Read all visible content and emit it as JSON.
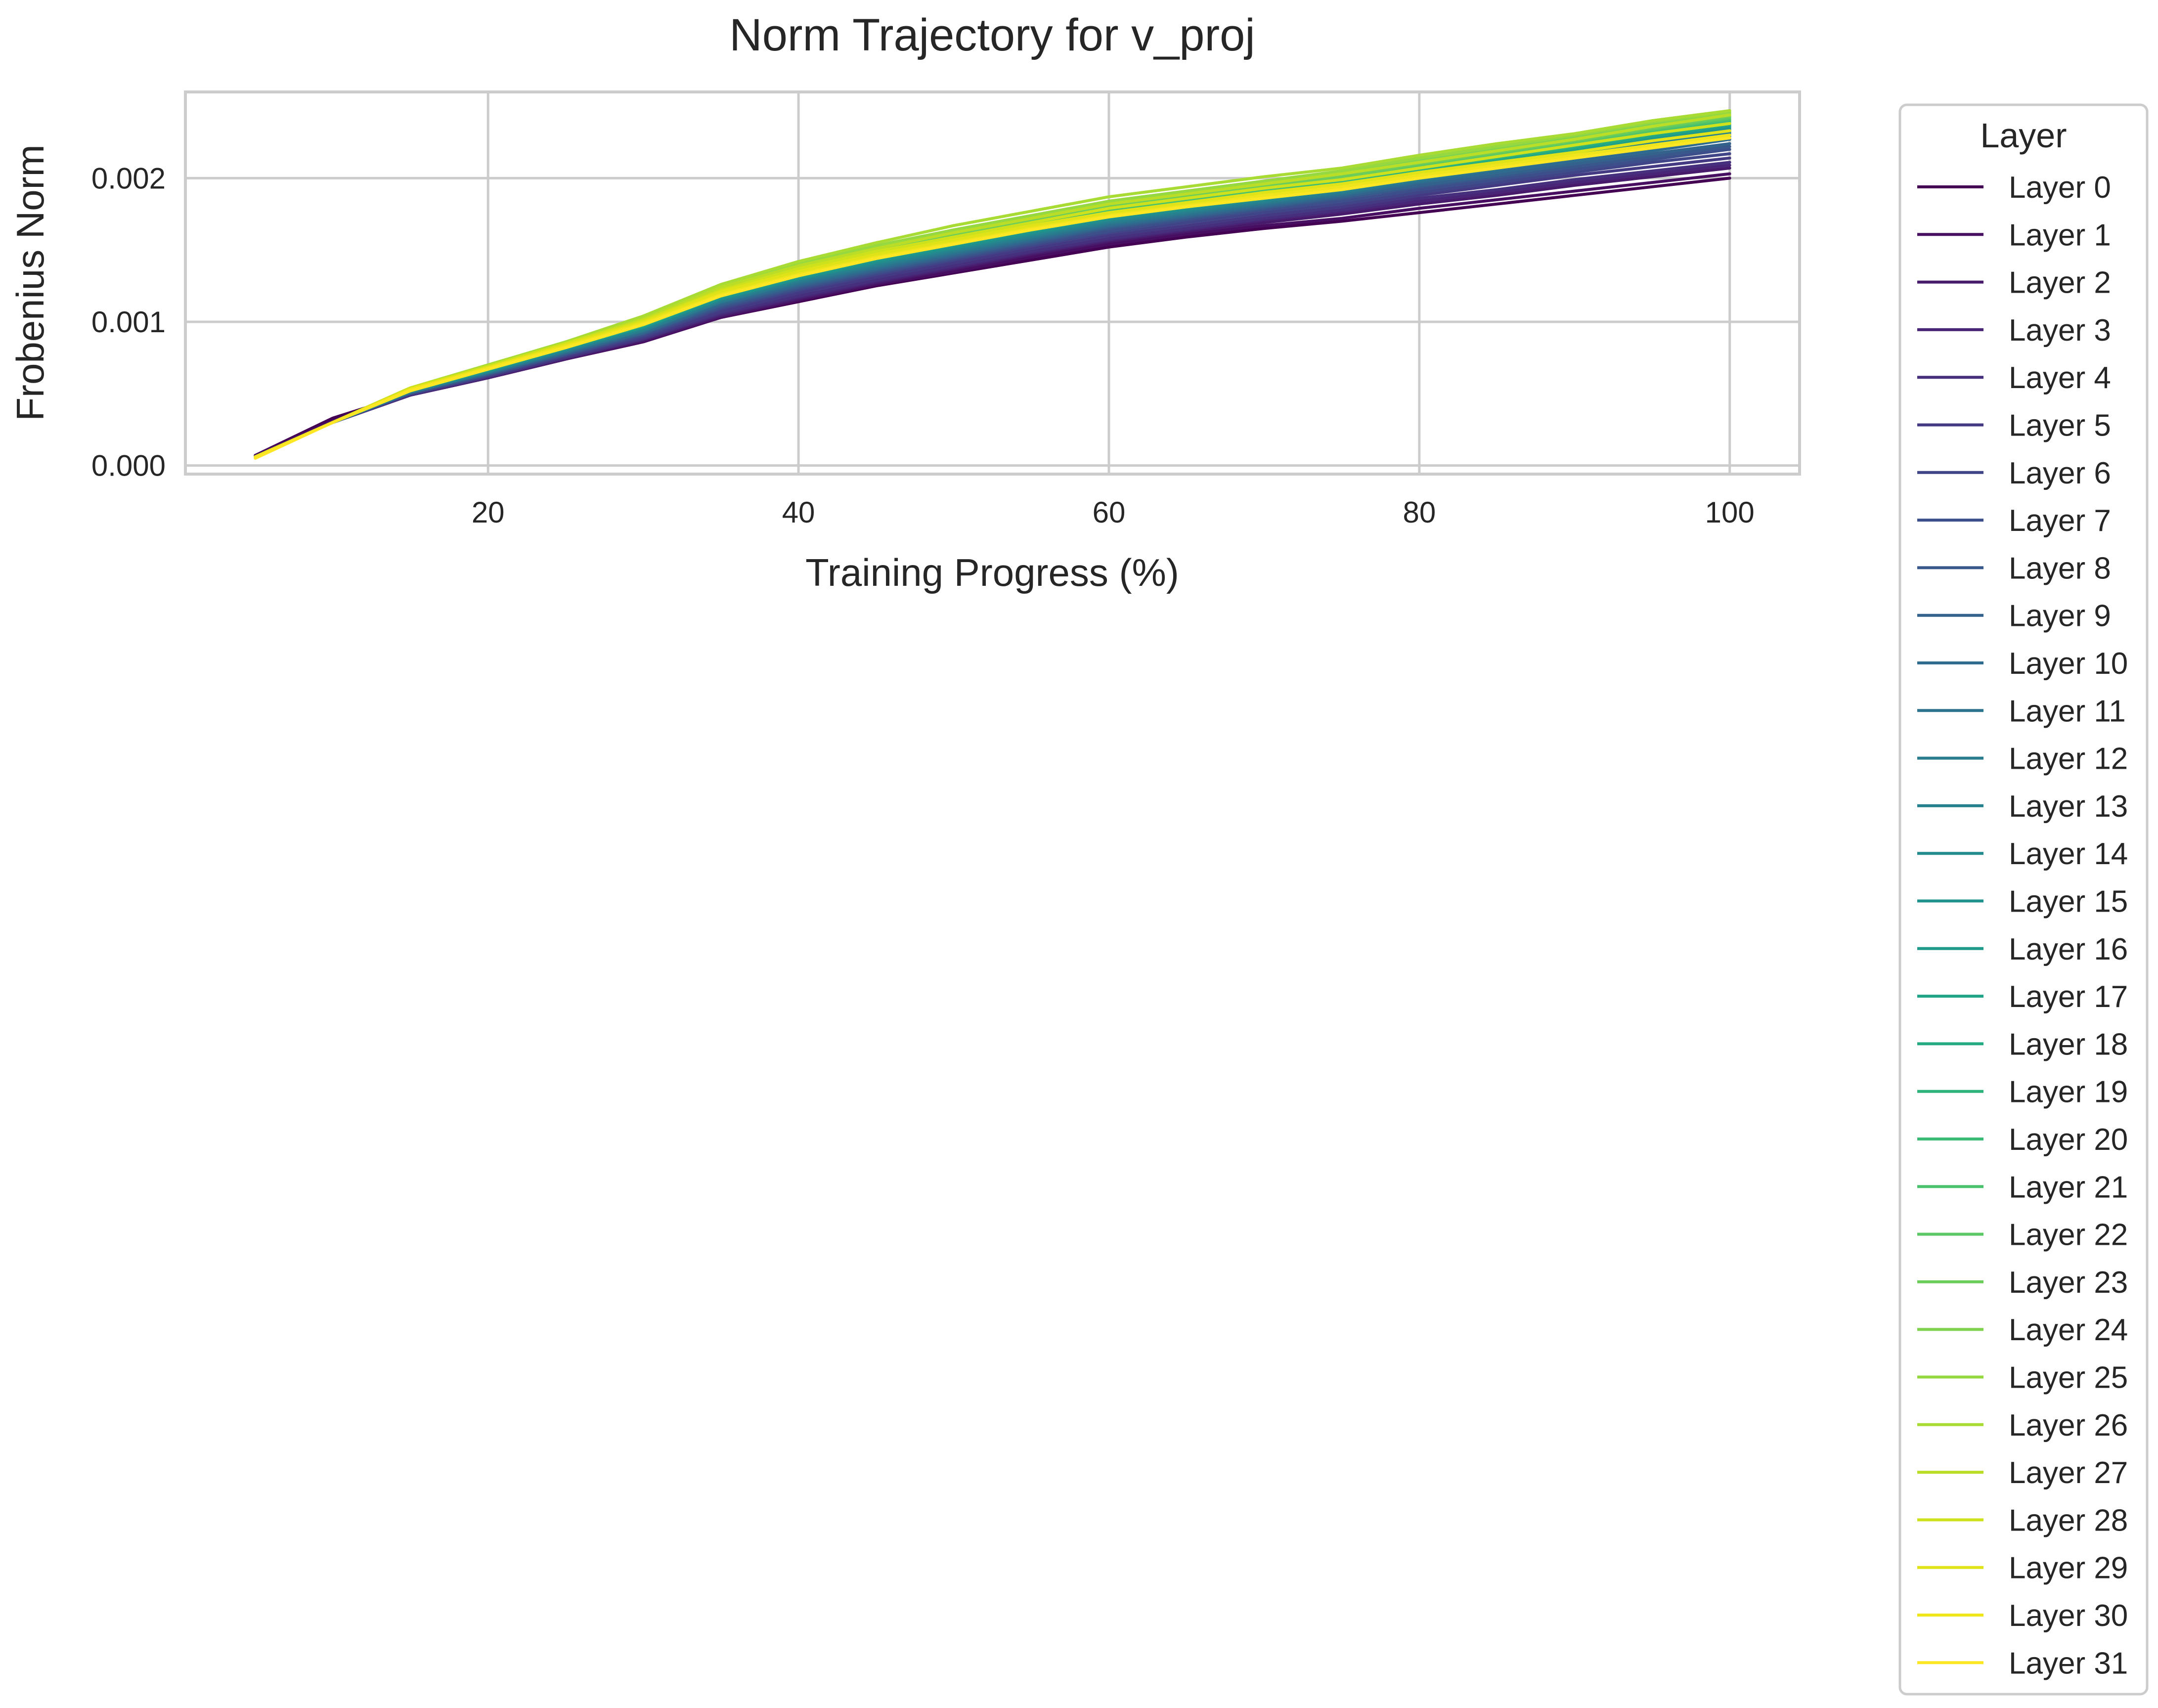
{
  "chart_data": {
    "type": "line",
    "title": "Norm Trajectory for v_proj",
    "xlabel": "Training Progress (%)",
    "ylabel": "Frobenius Norm",
    "xlim": [
      0.5,
      104.5
    ],
    "ylim": [
      -6e-05,
      0.0026
    ],
    "xticks": [
      20,
      40,
      60,
      80,
      100
    ],
    "xtick_labels": [
      "20",
      "40",
      "60",
      "80",
      "100"
    ],
    "yticks": [
      0,
      0.001,
      0.002
    ],
    "ytick_labels": [
      "0.000",
      "0.001",
      "0.002"
    ],
    "grid": true,
    "legend": {
      "title": "Layer",
      "placement": "outside-right"
    },
    "x": [
      5,
      10,
      15,
      20,
      25,
      30,
      35,
      40,
      45,
      50,
      55,
      60,
      65,
      70,
      75,
      80,
      85,
      90,
      95,
      100
    ],
    "series": [
      {
        "name": "Layer 0",
        "color": "#440154",
        "values": [
          7e-05,
          0.00033,
          0.0005,
          0.00062,
          0.00075,
          0.00087,
          0.00103,
          0.00114,
          0.00125,
          0.00134,
          0.00143,
          0.00152,
          0.00159,
          0.00165,
          0.0017,
          0.00176,
          0.00182,
          0.00188,
          0.00194,
          0.002
        ]
      },
      {
        "name": "Layer 1",
        "color": "#470e61",
        "values": [
          7e-05,
          0.00031,
          0.00049,
          0.00061,
          0.00074,
          0.00086,
          0.00103,
          0.00115,
          0.00126,
          0.00135,
          0.00145,
          0.00154,
          0.00161,
          0.00167,
          0.00172,
          0.00179,
          0.00185,
          0.00191,
          0.00197,
          0.00203
        ]
      },
      {
        "name": "Layer 2",
        "color": "#481a6c",
        "values": [
          6e-05,
          0.0003,
          0.00049,
          0.00061,
          0.00074,
          0.00087,
          0.00104,
          0.00116,
          0.00127,
          0.00137,
          0.00147,
          0.00156,
          0.00163,
          0.00169,
          0.00175,
          0.00182,
          0.00188,
          0.00195,
          0.00201,
          0.00207
        ]
      },
      {
        "name": "Layer 3",
        "color": "#482576",
        "values": [
          6e-05,
          0.0003,
          0.00049,
          0.00061,
          0.00075,
          0.00088,
          0.00105,
          0.00117,
          0.00128,
          0.00138,
          0.00148,
          0.00157,
          0.00164,
          0.00171,
          0.00177,
          0.00184,
          0.0019,
          0.00197,
          0.00203,
          0.00209
        ]
      },
      {
        "name": "Layer 4",
        "color": "#46307e",
        "values": [
          6e-05,
          0.0003,
          0.00049,
          0.00062,
          0.00075,
          0.00088,
          0.00106,
          0.00118,
          0.00129,
          0.00139,
          0.00149,
          0.00158,
          0.00165,
          0.00172,
          0.00178,
          0.00186,
          0.00192,
          0.00199,
          0.00205,
          0.00211
        ]
      },
      {
        "name": "Layer 5",
        "color": "#443a83",
        "values": [
          6e-05,
          0.0003,
          0.0005,
          0.00062,
          0.00076,
          0.00089,
          0.00107,
          0.0012,
          0.00131,
          0.00141,
          0.00151,
          0.0016,
          0.00167,
          0.00174,
          0.0018,
          0.00188,
          0.00195,
          0.00202,
          0.00208,
          0.00214
        ]
      },
      {
        "name": "Layer 6",
        "color": "#404588",
        "values": [
          6e-05,
          0.0003,
          0.0005,
          0.00063,
          0.00077,
          0.0009,
          0.00109,
          0.00122,
          0.00133,
          0.00143,
          0.00153,
          0.00162,
          0.00169,
          0.00176,
          0.00182,
          0.0019,
          0.00197,
          0.00204,
          0.00211,
          0.00217
        ]
      },
      {
        "name": "Layer 7",
        "color": "#3c4f8a",
        "values": [
          6e-05,
          0.0003,
          0.0005,
          0.00063,
          0.00077,
          0.00091,
          0.0011,
          0.00123,
          0.00134,
          0.00144,
          0.00154,
          0.00163,
          0.00171,
          0.00178,
          0.00184,
          0.00192,
          0.00199,
          0.00206,
          0.00213,
          0.0022
        ]
      },
      {
        "name": "Layer 8",
        "color": "#38588c",
        "values": [
          6e-05,
          0.0003,
          0.00051,
          0.00064,
          0.00078,
          0.00092,
          0.00111,
          0.00124,
          0.00135,
          0.00145,
          0.00155,
          0.00165,
          0.00172,
          0.00179,
          0.00186,
          0.00194,
          0.00201,
          0.00208,
          0.00215,
          0.00222
        ]
      },
      {
        "name": "Layer 9",
        "color": "#33628d",
        "values": [
          6e-05,
          0.0003,
          0.00051,
          0.00064,
          0.00078,
          0.00092,
          0.00112,
          0.00125,
          0.00136,
          0.00146,
          0.00156,
          0.00166,
          0.00173,
          0.0018,
          0.00187,
          0.00195,
          0.00202,
          0.0021,
          0.00217,
          0.00224
        ]
      },
      {
        "name": "Layer 10",
        "color": "#2f6b8e",
        "values": [
          6e-05,
          0.0003,
          0.00051,
          0.00064,
          0.00079,
          0.00093,
          0.00113,
          0.00126,
          0.00137,
          0.00147,
          0.00157,
          0.00167,
          0.00174,
          0.00181,
          0.00188,
          0.00197,
          0.00204,
          0.00212,
          0.00219,
          0.00227
        ]
      },
      {
        "name": "Layer 11",
        "color": "#2c738e",
        "values": [
          6e-05,
          0.0003,
          0.00051,
          0.00065,
          0.00079,
          0.00094,
          0.00114,
          0.00127,
          0.00138,
          0.00148,
          0.00158,
          0.00168,
          0.00175,
          0.00182,
          0.00189,
          0.00198,
          0.00206,
          0.00214,
          0.00221,
          0.00229
        ]
      },
      {
        "name": "Layer 12",
        "color": "#297b8e",
        "values": [
          6e-05,
          0.0003,
          0.00051,
          0.00065,
          0.0008,
          0.00094,
          0.00114,
          0.00128,
          0.00139,
          0.00149,
          0.00159,
          0.00169,
          0.00176,
          0.00183,
          0.0019,
          0.00199,
          0.00207,
          0.00215,
          0.00223,
          0.00231
        ]
      },
      {
        "name": "Layer 13",
        "color": "#26828e",
        "values": [
          6e-05,
          0.0003,
          0.00052,
          0.00065,
          0.0008,
          0.00095,
          0.00115,
          0.00129,
          0.0014,
          0.0015,
          0.0016,
          0.0017,
          0.00177,
          0.00184,
          0.00191,
          0.002,
          0.00208,
          0.00216,
          0.00224,
          0.00232
        ]
      },
      {
        "name": "Layer 14",
        "color": "#238a8d",
        "values": [
          6e-05,
          0.0003,
          0.00052,
          0.00066,
          0.00081,
          0.00096,
          0.00116,
          0.0013,
          0.00141,
          0.00151,
          0.00161,
          0.00171,
          0.00178,
          0.00185,
          0.00192,
          0.00201,
          0.00209,
          0.00217,
          0.00226,
          0.00234
        ]
      },
      {
        "name": "Layer 15",
        "color": "#1f928c",
        "values": [
          6e-05,
          0.0003,
          0.00052,
          0.00066,
          0.00081,
          0.00096,
          0.00116,
          0.0013,
          0.00142,
          0.00152,
          0.00162,
          0.00172,
          0.00179,
          0.00186,
          0.00193,
          0.00202,
          0.0021,
          0.00218,
          0.00227,
          0.00235
        ]
      },
      {
        "name": "Layer 16",
        "color": "#1f9a8a",
        "values": [
          6e-05,
          0.0003,
          0.00052,
          0.00066,
          0.00082,
          0.00097,
          0.00117,
          0.00131,
          0.00143,
          0.00153,
          0.00163,
          0.00173,
          0.0018,
          0.00187,
          0.00194,
          0.00203,
          0.00211,
          0.00219,
          0.00228,
          0.00236
        ]
      },
      {
        "name": "Layer 17",
        "color": "#20a386",
        "values": [
          6e-05,
          0.0003,
          0.00052,
          0.00067,
          0.00082,
          0.00097,
          0.00118,
          0.00132,
          0.00144,
          0.00154,
          0.00164,
          0.00174,
          0.00181,
          0.00188,
          0.00195,
          0.00204,
          0.00212,
          0.0022,
          0.00229,
          0.00237
        ]
      },
      {
        "name": "Layer 18",
        "color": "#24aa83",
        "values": [
          6e-05,
          0.0003,
          0.00052,
          0.00067,
          0.00082,
          0.00098,
          0.00118,
          0.00133,
          0.00145,
          0.00155,
          0.00165,
          0.00175,
          0.00182,
          0.00189,
          0.00196,
          0.00205,
          0.00213,
          0.00221,
          0.0023,
          0.00238
        ]
      },
      {
        "name": "Layer 19",
        "color": "#2eb37c",
        "values": [
          6e-05,
          0.0003,
          0.00053,
          0.00067,
          0.00083,
          0.00098,
          0.00119,
          0.00134,
          0.00146,
          0.00156,
          0.00166,
          0.00176,
          0.00183,
          0.0019,
          0.00197,
          0.00206,
          0.00214,
          0.00222,
          0.00231,
          0.00239
        ]
      },
      {
        "name": "Layer 20",
        "color": "#3bbb75",
        "values": [
          6e-05,
          0.0003,
          0.00053,
          0.00068,
          0.00083,
          0.00099,
          0.0012,
          0.00135,
          0.00147,
          0.00157,
          0.00167,
          0.00177,
          0.00184,
          0.00191,
          0.00198,
          0.00207,
          0.00215,
          0.00223,
          0.00232,
          0.0024
        ]
      },
      {
        "name": "Layer 21",
        "color": "#4ac16d",
        "values": [
          6e-05,
          0.0003,
          0.00053,
          0.00068,
          0.00084,
          0.001,
          0.00121,
          0.00136,
          0.00148,
          0.00158,
          0.00168,
          0.00178,
          0.00185,
          0.00192,
          0.00199,
          0.00208,
          0.00216,
          0.00224,
          0.00233,
          0.00241
        ]
      },
      {
        "name": "Layer 22",
        "color": "#5ac864",
        "values": [
          6e-05,
          0.0003,
          0.00053,
          0.00068,
          0.00084,
          0.001,
          0.00122,
          0.00137,
          0.00149,
          0.00159,
          0.00169,
          0.00179,
          0.00186,
          0.00193,
          0.002,
          0.00209,
          0.00217,
          0.00225,
          0.00234,
          0.00242
        ]
      },
      {
        "name": "Layer 23",
        "color": "#6ccd5a",
        "values": [
          6e-05,
          0.0003,
          0.00053,
          0.00069,
          0.00085,
          0.00101,
          0.00123,
          0.00138,
          0.0015,
          0.0016,
          0.0017,
          0.0018,
          0.00187,
          0.00194,
          0.00201,
          0.0021,
          0.00218,
          0.00226,
          0.00235,
          0.00243
        ]
      },
      {
        "name": "Layer 24",
        "color": "#7fd34e",
        "values": [
          6e-05,
          0.0003,
          0.00054,
          0.00069,
          0.00085,
          0.00102,
          0.00124,
          0.00139,
          0.00151,
          0.00162,
          0.00172,
          0.00182,
          0.00189,
          0.00196,
          0.00203,
          0.00212,
          0.0022,
          0.00228,
          0.00237,
          0.00245
        ]
      },
      {
        "name": "Layer 25",
        "color": "#95d840",
        "values": [
          6e-05,
          0.0003,
          0.00054,
          0.0007,
          0.00086,
          0.00103,
          0.00125,
          0.0014,
          0.00153,
          0.00164,
          0.00174,
          0.00184,
          0.00191,
          0.00198,
          0.00205,
          0.00214,
          0.00222,
          0.0023,
          0.00239,
          0.00246
        ]
      },
      {
        "name": "Layer 26",
        "color": "#a8db34",
        "values": [
          6e-05,
          0.0003,
          0.00054,
          0.0007,
          0.00086,
          0.00104,
          0.00126,
          0.00142,
          0.00155,
          0.00167,
          0.00177,
          0.00187,
          0.00194,
          0.00201,
          0.00207,
          0.00216,
          0.00224,
          0.00231,
          0.0024,
          0.00247
        ]
      },
      {
        "name": "Layer 27",
        "color": "#bade28",
        "values": [
          6e-05,
          0.0003,
          0.00054,
          0.00069,
          0.00085,
          0.00102,
          0.00124,
          0.00139,
          0.00151,
          0.00162,
          0.00172,
          0.00182,
          0.00189,
          0.00196,
          0.00203,
          0.00211,
          0.00219,
          0.00227,
          0.00236,
          0.00244
        ]
      },
      {
        "name": "Layer 28",
        "color": "#cde11d",
        "values": [
          6e-05,
          0.0003,
          0.00054,
          0.00069,
          0.00085,
          0.00101,
          0.00122,
          0.00137,
          0.00149,
          0.00159,
          0.00169,
          0.00179,
          0.00186,
          0.00193,
          0.00199,
          0.00207,
          0.00215,
          0.00223,
          0.00231,
          0.00238
        ]
      },
      {
        "name": "Layer 29",
        "color": "#dfe318",
        "values": [
          6e-05,
          0.0003,
          0.00053,
          0.00068,
          0.00084,
          0.001,
          0.00121,
          0.00135,
          0.00147,
          0.00157,
          0.00167,
          0.00176,
          0.00183,
          0.0019,
          0.00196,
          0.00204,
          0.00211,
          0.00218,
          0.00226,
          0.00233
        ]
      },
      {
        "name": "Layer 30",
        "color": "#efe51c",
        "values": [
          6e-05,
          0.0003,
          0.00053,
          0.00068,
          0.00083,
          0.00099,
          0.00119,
          0.00133,
          0.00145,
          0.00155,
          0.00165,
          0.00174,
          0.00181,
          0.00188,
          0.00194,
          0.00202,
          0.00209,
          0.00216,
          0.00223,
          0.0023
        ]
      },
      {
        "name": "Layer 31",
        "color": "#fde725",
        "values": [
          5e-05,
          0.0003,
          0.00052,
          0.00067,
          0.00082,
          0.00098,
          0.00118,
          0.00132,
          0.00144,
          0.00154,
          0.00164,
          0.00173,
          0.0018,
          0.00186,
          0.00192,
          0.002,
          0.00207,
          0.00214,
          0.00221,
          0.00228
        ]
      }
    ]
  }
}
